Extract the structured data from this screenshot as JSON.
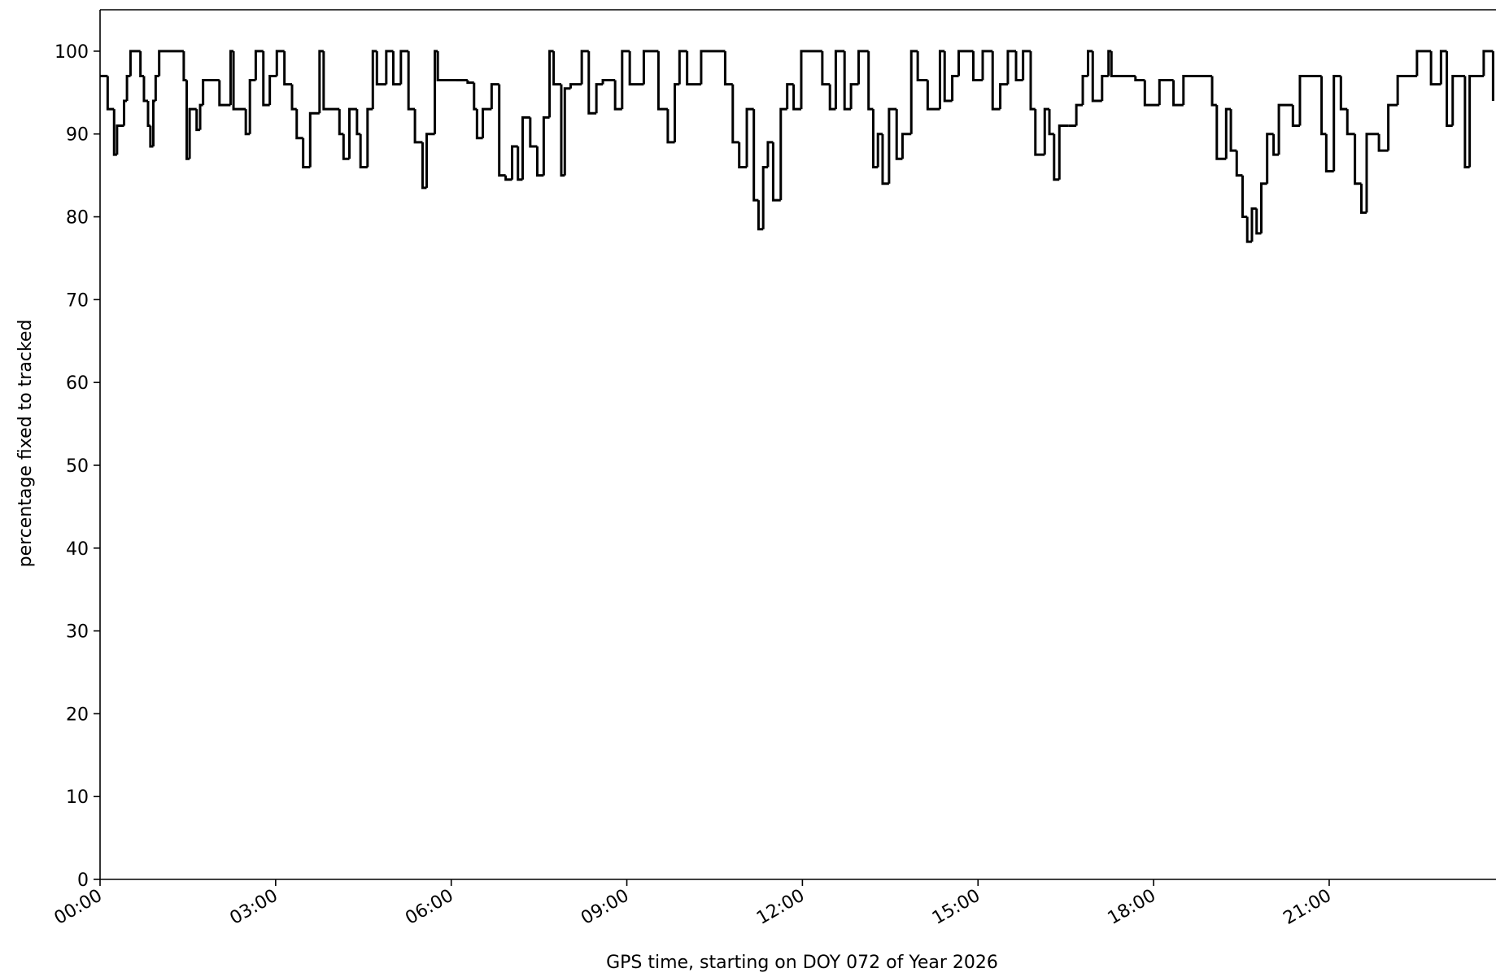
{
  "chart_data": {
    "type": "line",
    "drawstyle": "steps-post",
    "color": "#000000",
    "xlabel": "GPS time, starting on DOY 072 of Year 2026",
    "ylabel": "percentage fixed to tracked",
    "x": [
      0,
      0.13,
      0.24,
      0.29,
      0.41,
      0.46,
      0.52,
      0.69,
      0.75,
      0.82,
      0.86,
      0.91,
      0.95,
      1.01,
      1.43,
      1.48,
      1.53,
      1.65,
      1.71,
      1.76,
      2.04,
      2.23,
      2.28,
      2.49,
      2.56,
      2.66,
      2.79,
      2.9,
      3.02,
      3.15,
      3.28,
      3.36,
      3.47,
      3.59,
      3.75,
      3.82,
      4.09,
      4.16,
      4.26,
      4.39,
      4.45,
      4.57,
      4.66,
      4.73,
      4.89,
      5.01,
      5.14,
      5.27,
      5.38,
      5.51,
      5.58,
      5.72,
      5.77,
      6.08,
      6.28,
      6.39,
      6.44,
      6.54,
      6.69,
      6.82,
      6.93,
      7.04,
      7.14,
      7.22,
      7.35,
      7.47,
      7.58,
      7.68,
      7.75,
      7.88,
      7.94,
      8.04,
      8.23,
      8.35,
      8.48,
      8.59,
      8.8,
      8.92,
      9.05,
      9.29,
      9.54,
      9.7,
      9.82,
      9.9,
      10.03,
      10.27,
      10.68,
      10.81,
      10.92,
      11.05,
      11.17,
      11.25,
      11.33,
      11.41,
      11.5,
      11.63,
      11.74,
      11.85,
      11.98,
      12.34,
      12.47,
      12.57,
      12.72,
      12.83,
      12.96,
      13.13,
      13.21,
      13.29,
      13.37,
      13.48,
      13.61,
      13.71,
      13.86,
      13.97,
      14.14,
      14.35,
      14.43,
      14.56,
      14.67,
      14.92,
      15.08,
      15.25,
      15.38,
      15.51,
      15.65,
      15.77,
      15.9,
      15.98,
      16.14,
      16.22,
      16.3,
      16.39,
      16.55,
      16.68,
      16.79,
      16.88,
      16.96,
      17.12,
      17.23,
      17.28,
      17.69,
      17.85,
      18.1,
      18.34,
      18.51,
      19.0,
      19.08,
      19.24,
      19.32,
      19.42,
      19.52,
      19.6,
      19.68,
      19.76,
      19.84,
      19.94,
      20.05,
      20.14,
      20.38,
      20.5,
      20.87,
      20.95,
      21.08,
      21.2,
      21.31,
      21.44,
      21.55,
      21.64,
      21.85,
      22.01,
      22.17,
      22.5,
      22.74,
      22.91,
      23.01,
      23.11,
      23.32,
      23.4,
      23.64,
      23.8
    ],
    "values": [
      97,
      93,
      87.5,
      91,
      94,
      97,
      100,
      97,
      94,
      91,
      88.5,
      94,
      97,
      100,
      96.5,
      87,
      93,
      90.5,
      93.5,
      96.5,
      93.5,
      100,
      93,
      90,
      96.5,
      100,
      93.5,
      97,
      100,
      96,
      93,
      89.5,
      86,
      92.5,
      100,
      93,
      90,
      87,
      93,
      90,
      86,
      93,
      100,
      96,
      100,
      96,
      100,
      93,
      89,
      83.5,
      90,
      100,
      96.5,
      96.5,
      96.2,
      93,
      89.5,
      93,
      96,
      85,
      84.5,
      88.5,
      84.5,
      92,
      88.5,
      85,
      92,
      100,
      96,
      85,
      95.5,
      96,
      100,
      92.5,
      96,
      96.5,
      93,
      100,
      96,
      100,
      93,
      89,
      96,
      100,
      96,
      100,
      96,
      89,
      86,
      93,
      82,
      78.5,
      86,
      89,
      82,
      93,
      96,
      93,
      100,
      96,
      93,
      100,
      93,
      96,
      100,
      93,
      86,
      90,
      84,
      93,
      87,
      90,
      100,
      96.5,
      93,
      100,
      94,
      97,
      100,
      96.5,
      100,
      93,
      96,
      100,
      96.5,
      100,
      93,
      87.5,
      93,
      90,
      84.5,
      91,
      91,
      93.5,
      97,
      100,
      94,
      97,
      100,
      97,
      96.5,
      93.5,
      96.5,
      93.5,
      97,
      93.5,
      87,
      93,
      88,
      85,
      80,
      77,
      81,
      78,
      84,
      90,
      87.5,
      93.5,
      91,
      97,
      90,
      85.5,
      97,
      93,
      90,
      84,
      80.5,
      90,
      88,
      93.5,
      97,
      100,
      96,
      100,
      91,
      97,
      86,
      97,
      100,
      94
    ],
    "xlim": [
      0,
      23.85
    ],
    "xticks": [
      {
        "value": 0,
        "label": "00:00"
      },
      {
        "value": 3,
        "label": "03:00"
      },
      {
        "value": 6,
        "label": "06:00"
      },
      {
        "value": 9,
        "label": "09:00"
      },
      {
        "value": 12,
        "label": "12:00"
      },
      {
        "value": 15,
        "label": "15:00"
      },
      {
        "value": 18,
        "label": "18:00"
      },
      {
        "value": 21,
        "label": "21:00"
      }
    ],
    "ylim": [
      0,
      105
    ],
    "yticks": [
      0,
      10,
      20,
      30,
      40,
      50,
      60,
      70,
      80,
      90,
      100
    ],
    "grid": false
  }
}
